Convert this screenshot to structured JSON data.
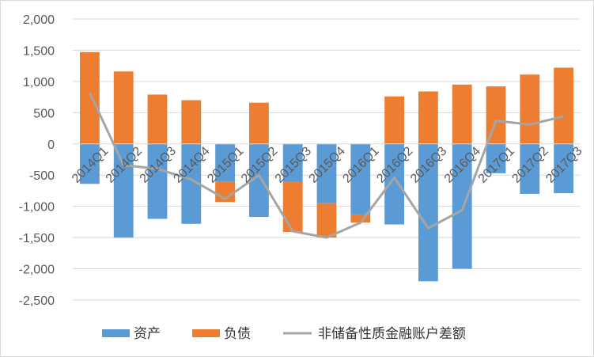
{
  "chart_data": {
    "type": "bar",
    "stacked": true,
    "categories": [
      "2014Q1",
      "2014Q2",
      "2014Q3",
      "2014Q4",
      "2015Q1",
      "2015Q2",
      "2015Q3",
      "2015Q4",
      "2016Q1",
      "2016Q2",
      "2016Q3",
      "2016Q4",
      "2017Q1",
      "2017Q2",
      "2017Q3"
    ],
    "series": [
      {
        "name": "资产",
        "type": "bar",
        "color": "#5b9bd5",
        "values": [
          -640,
          -1500,
          -1200,
          -1280,
          -600,
          -1170,
          -610,
          -950,
          -1130,
          -1290,
          -2200,
          -2000,
          -470,
          -800,
          -790
        ]
      },
      {
        "name": "负债",
        "type": "bar",
        "color": "#ed7d31",
        "values": [
          1470,
          1160,
          790,
          700,
          -330,
          660,
          -800,
          -550,
          -130,
          760,
          840,
          950,
          920,
          1110,
          1220
        ]
      },
      {
        "name": "非储备性质金融账户差额",
        "type": "line",
        "color": "#a5a5a5",
        "values": [
          820,
          -340,
          -400,
          -570,
          -880,
          -500,
          -1400,
          -1500,
          -1260,
          -540,
          -1350,
          -1060,
          370,
          310,
          440
        ]
      }
    ],
    "ylim": [
      -2500,
      2000
    ],
    "yticks": [
      "2,000",
      "1,500",
      "1,000",
      "500",
      "0",
      "-500",
      "-1,000",
      "-1,500",
      "-2,000",
      "-2,500"
    ],
    "ytick_values": [
      2000,
      1500,
      1000,
      500,
      0,
      -500,
      -1000,
      -1500,
      -2000,
      -2500
    ],
    "grid": true,
    "legend_position": "bottom",
    "title": "",
    "xlabel": "",
    "ylabel": ""
  }
}
